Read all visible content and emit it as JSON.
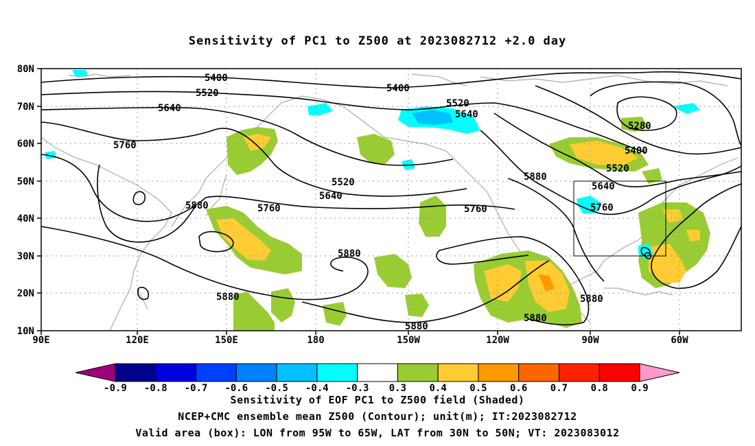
{
  "title": "Sensitivity of PC1 to Z500 at 2023082712 +2.0 day",
  "map": {
    "lat_labels": [
      "80N",
      "70N",
      "60N",
      "50N",
      "40N",
      "30N",
      "20N",
      "10N"
    ],
    "lon_labels": [
      "90E",
      "120E",
      "150E",
      "180",
      "150W",
      "120W",
      "90W",
      "60W"
    ],
    "lon_range": [
      "90E",
      "40W"
    ],
    "lat_range": [
      "10N",
      "80N"
    ],
    "valid_box": {
      "lon": [
        "95W",
        "65W"
      ],
      "lat": [
        "30N",
        "50N"
      ]
    },
    "contour_labels": [
      {
        "text": "5400",
        "name": "contour-5400-nw"
      },
      {
        "text": "5520",
        "name": "contour-5520-nw"
      },
      {
        "text": "5640",
        "name": "contour-5640-nw"
      },
      {
        "text": "5760",
        "name": "contour-5760-w"
      },
      {
        "text": "5880",
        "name": "contour-5880-japan"
      },
      {
        "text": "5760",
        "name": "contour-5760-mid"
      },
      {
        "text": "5640",
        "name": "contour-5640-mid"
      },
      {
        "text": "5520",
        "name": "contour-5520-mid"
      },
      {
        "text": "5400",
        "name": "contour-5400-top"
      },
      {
        "text": "5520",
        "name": "contour-5520-top"
      },
      {
        "text": "5640",
        "name": "contour-5640-top"
      },
      {
        "text": "5760",
        "name": "contour-5760-pac"
      },
      {
        "text": "5880",
        "name": "contour-5880-pac"
      },
      {
        "text": "5880",
        "name": "contour-5880-sw"
      },
      {
        "text": "5880",
        "name": "contour-5880-equ"
      },
      {
        "text": "5880",
        "name": "contour-5880-mex"
      },
      {
        "text": "5880",
        "name": "contour-5880-gulf"
      },
      {
        "text": "5880",
        "name": "contour-5880-na"
      },
      {
        "text": "5640",
        "name": "contour-5640-box"
      },
      {
        "text": "5760",
        "name": "contour-5760-box"
      },
      {
        "text": "5520",
        "name": "contour-5520-ca"
      },
      {
        "text": "5400",
        "name": "contour-5400-ca"
      },
      {
        "text": "5280",
        "name": "contour-5280-ca"
      }
    ]
  },
  "colorbar": {
    "labels": [
      "-0.9",
      "-0.8",
      "-0.7",
      "-0.6",
      "-0.5",
      "-0.4",
      "-0.3",
      "0.3",
      "0.4",
      "0.5",
      "0.6",
      "0.7",
      "0.8",
      "0.9"
    ],
    "colors": [
      "#a0007a",
      "#00008c",
      "#0000dc",
      "#0040ff",
      "#0080ff",
      "#00c0ff",
      "#00ffff",
      "#ffffff",
      "#99cc33",
      "#ffcc33",
      "#ff9900",
      "#ff6600",
      "#ff2200",
      "#ff0000",
      "#ff99cc"
    ]
  },
  "captions": [
    "Sensitivity of EOF PC1 to Z500 field (Shaded)",
    "NCEP+CMC ensemble mean Z500 (Contour); unit(m); IT:2023082712",
    "Valid area (box): LON from 95W to 65W, LAT from 30N to 50N; VT: 2023083012"
  ]
}
